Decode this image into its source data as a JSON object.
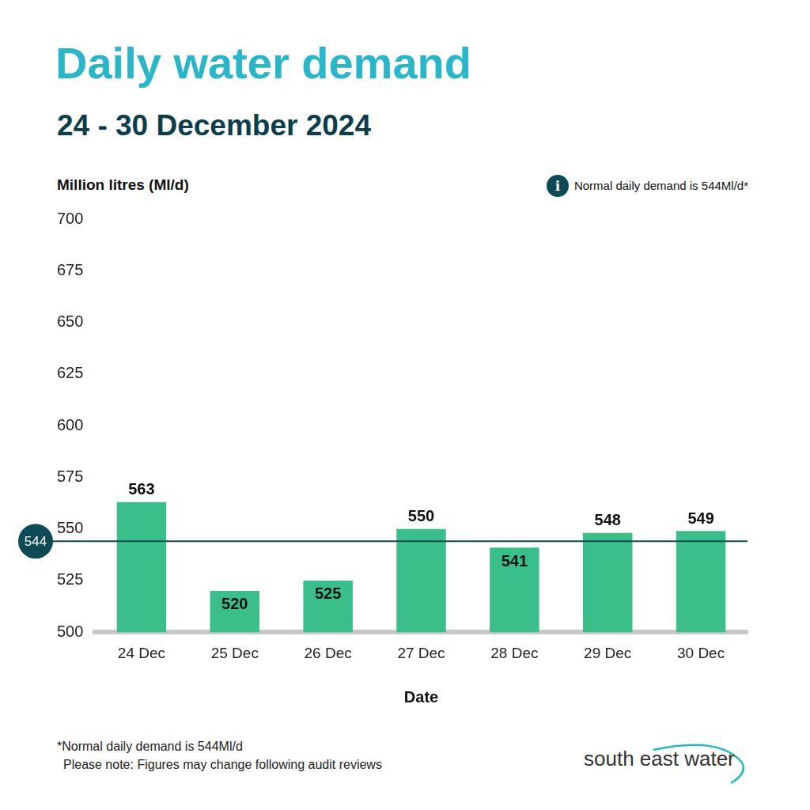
{
  "chart_data": {
    "type": "bar",
    "title": "Daily water demand",
    "subtitle": "24 - 30 December 2024",
    "y_label": "Million litres (Ml/d)",
    "x_label": "Date",
    "categories": [
      "24 Dec",
      "25 Dec",
      "26 Dec",
      "27 Dec",
      "28 Dec",
      "29 Dec",
      "30 Dec"
    ],
    "values": [
      563,
      520,
      525,
      550,
      541,
      548,
      549
    ],
    "color": "#3abf8b",
    "ylim": [
      500,
      700
    ],
    "yticks": [
      500,
      525,
      550,
      575,
      600,
      625,
      650,
      675,
      700
    ],
    "grid": false,
    "data_labels": true,
    "reference_line": {
      "value": 544,
      "color": "#0d4a55"
    },
    "note_icon": "i",
    "note": "Normal daily demand is 544Ml/d*",
    "footnotes": [
      "*Normal daily demand is 544Ml/d",
      "Please note: Figures may change following audit reviews"
    ],
    "logo": "south east water"
  }
}
